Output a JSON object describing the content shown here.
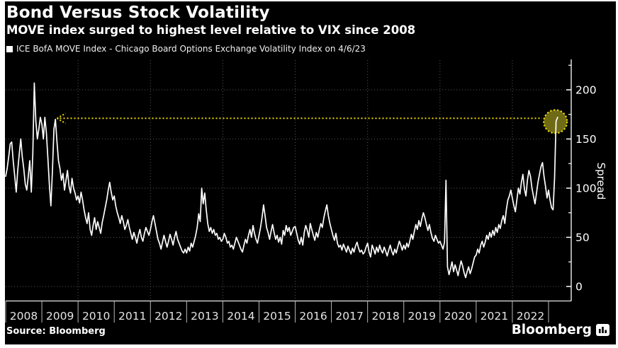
{
  "chart_data": {
    "type": "line",
    "title": "Bond Versus Stock Volatility",
    "subtitle": "MOVE index surged to highest level relative to VIX since 2008",
    "legend": "ICE BofA MOVE Index - Chicago Board Options Exchange Volatility Index on 4/6/23",
    "source": "Source: Bloomberg",
    "brand": "Bloomberg",
    "ylabel": "Spread",
    "x_start_year": 2008,
    "samples_per_year": 24,
    "x_ticks": [
      "2008",
      "2009",
      "2010",
      "2011",
      "2012",
      "2013",
      "2014",
      "2015",
      "2016",
      "2017",
      "2018",
      "2019",
      "2020",
      "2021",
      "2022"
    ],
    "y_ticks": [
      0,
      50,
      100,
      150,
      200
    ],
    "y_minor_ticks": [
      25,
      75,
      125,
      175,
      225
    ],
    "ylim": [
      -15,
      230
    ],
    "grid_v_years": [
      2010,
      2012,
      2014,
      2016,
      2018,
      2020,
      2022
    ],
    "series": [
      {
        "name": "MOVE index minus VIX spread",
        "color": "#ffffff",
        "values": [
          112,
          120,
          132,
          145,
          147,
          128,
          112,
          96,
          118,
          135,
          150,
          132,
          120,
          104,
          98,
          112,
          128,
          96,
          135,
          207,
          168,
          150,
          160,
          172,
          165,
          150,
          172,
          156,
          130,
          103,
          82,
          118,
          160,
          170,
          148,
          128,
          120,
          108,
          115,
          98,
          108,
          118,
          102,
          95,
          110,
          100,
          95,
          88,
          92,
          85,
          96,
          88,
          78,
          70,
          64,
          75,
          58,
          52,
          62,
          70,
          58,
          66,
          60,
          54,
          65,
          72,
          80,
          88,
          98,
          106,
          96,
          88,
          92,
          82,
          75,
          70,
          64,
          72,
          66,
          58,
          62,
          68,
          60,
          54,
          48,
          55,
          50,
          44,
          52,
          58,
          50,
          46,
          54,
          60,
          56,
          52,
          58,
          66,
          72,
          64,
          56,
          48,
          44,
          38,
          45,
          52,
          46,
          40,
          46,
          53,
          48,
          42,
          50,
          56,
          48,
          44,
          40,
          36,
          34,
          38,
          34,
          40,
          36,
          44,
          40,
          46,
          52,
          60,
          74,
          66,
          100,
          84,
          95,
          78,
          64,
          56,
          60,
          54,
          58,
          52,
          54,
          48,
          50,
          46,
          48,
          54,
          50,
          44,
          46,
          40,
          42,
          38,
          44,
          50,
          46,
          42,
          38,
          35,
          42,
          48,
          44,
          52,
          58,
          50,
          62,
          54,
          48,
          44,
          52,
          60,
          70,
          83,
          72,
          60,
          55,
          48,
          56,
          63,
          55,
          48,
          52,
          45,
          50,
          43,
          57,
          52,
          62,
          56,
          60,
          52,
          56,
          60,
          61,
          54,
          47,
          43,
          50,
          42,
          55,
          62,
          57,
          50,
          64,
          58,
          52,
          47,
          55,
          50,
          58,
          64,
          60,
          70,
          77,
          83,
          72,
          64,
          58,
          52,
          47,
          54,
          44,
          40,
          42,
          37,
          43,
          39,
          35,
          41,
          37,
          33,
          39,
          35,
          41,
          45,
          39,
          35,
          37,
          33,
          35,
          40,
          44,
          35,
          30,
          42,
          38,
          33,
          40,
          35,
          42,
          37,
          34,
          40,
          36,
          31,
          37,
          42,
          36,
          32,
          38,
          34,
          40,
          46,
          42,
          37,
          42,
          38,
          44,
          40,
          46,
          53,
          48,
          56,
          63,
          58,
          67,
          61,
          69,
          75,
          70,
          63,
          57,
          63,
          55,
          49,
          46,
          52,
          48,
          44,
          46,
          42,
          38,
          45,
          108,
          20,
          12,
          18,
          25,
          15,
          22,
          17,
          11,
          19,
          26,
          21,
          14,
          9,
          15,
          20,
          13,
          18,
          24,
          30,
          32,
          38,
          34,
          42,
          46,
          40,
          45,
          52,
          48,
          55,
          50,
          57,
          52,
          60,
          55,
          63,
          59,
          67,
          72,
          64,
          78,
          88,
          92,
          98,
          90,
          82,
          76,
          88,
          100,
          94,
          106,
          114,
          99,
          92,
          108,
          118,
          112,
          100,
          92,
          84,
          95,
          106,
          114,
          122,
          126,
          112,
          102,
          90,
          98,
          88,
          80,
          78,
          110,
          168,
          172
        ]
      }
    ],
    "annotation": {
      "arrow_value": 171,
      "arrow_from_year": 2022.82,
      "arrow_to_year": 2009.42,
      "circle_year": 2023.19,
      "circle_value": 172,
      "accent_color": "#ecd900",
      "circle_fill": "#6f6a15"
    },
    "colors": {
      "background": "#000000",
      "page": "#ffffff",
      "grid": "#565656",
      "axis": "#e8e8e8",
      "tick": "#b9b9b9",
      "text": "#ffffff",
      "year_label": "#e4e4e4"
    }
  }
}
